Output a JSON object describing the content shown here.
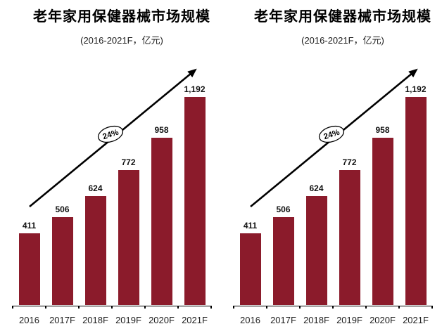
{
  "page": {
    "background_color": "#ffffff"
  },
  "chart_data": [
    {
      "type": "bar",
      "title": "老年家用保健器械市场规模",
      "subtitle": "(2016-2021F，亿元)",
      "xlabel": "",
      "ylabel": "",
      "categories": [
        "2016",
        "2017F",
        "2018F",
        "2019F",
        "2020F",
        "2021F"
      ],
      "values": [
        411,
        506,
        624,
        772,
        958,
        1192
      ],
      "value_labels": [
        "411",
        "506",
        "624",
        "772",
        "958",
        "1,192"
      ],
      "ylim": [
        0,
        1250
      ],
      "grid": false,
      "legend": "none",
      "bar_color": "#8B1B2B",
      "axis_color": "#000000",
      "label_color": "#111111",
      "trend_arrow": {
        "label": "24%",
        "description": "upward diagonal trend arrow with oval CAGR badge",
        "badge_fill": "#ffffff",
        "badge_stroke": "#000000"
      }
    },
    {
      "type": "bar",
      "title": "老年家用保健器械市场规模",
      "subtitle": "(2016-2021F，亿元)",
      "xlabel": "",
      "ylabel": "",
      "categories": [
        "2016",
        "2017F",
        "2018F",
        "2019F",
        "2020F",
        "2021F"
      ],
      "values": [
        411,
        506,
        624,
        772,
        958,
        1192
      ],
      "value_labels": [
        "411",
        "506",
        "624",
        "772",
        "958",
        "1,192"
      ],
      "ylim": [
        0,
        1250
      ],
      "grid": false,
      "legend": "none",
      "bar_color": "#8B1B2B",
      "axis_color": "#000000",
      "label_color": "#111111",
      "trend_arrow": {
        "label": "24%",
        "description": "upward diagonal trend arrow with oval CAGR badge",
        "badge_fill": "#ffffff",
        "badge_stroke": "#000000"
      }
    }
  ]
}
